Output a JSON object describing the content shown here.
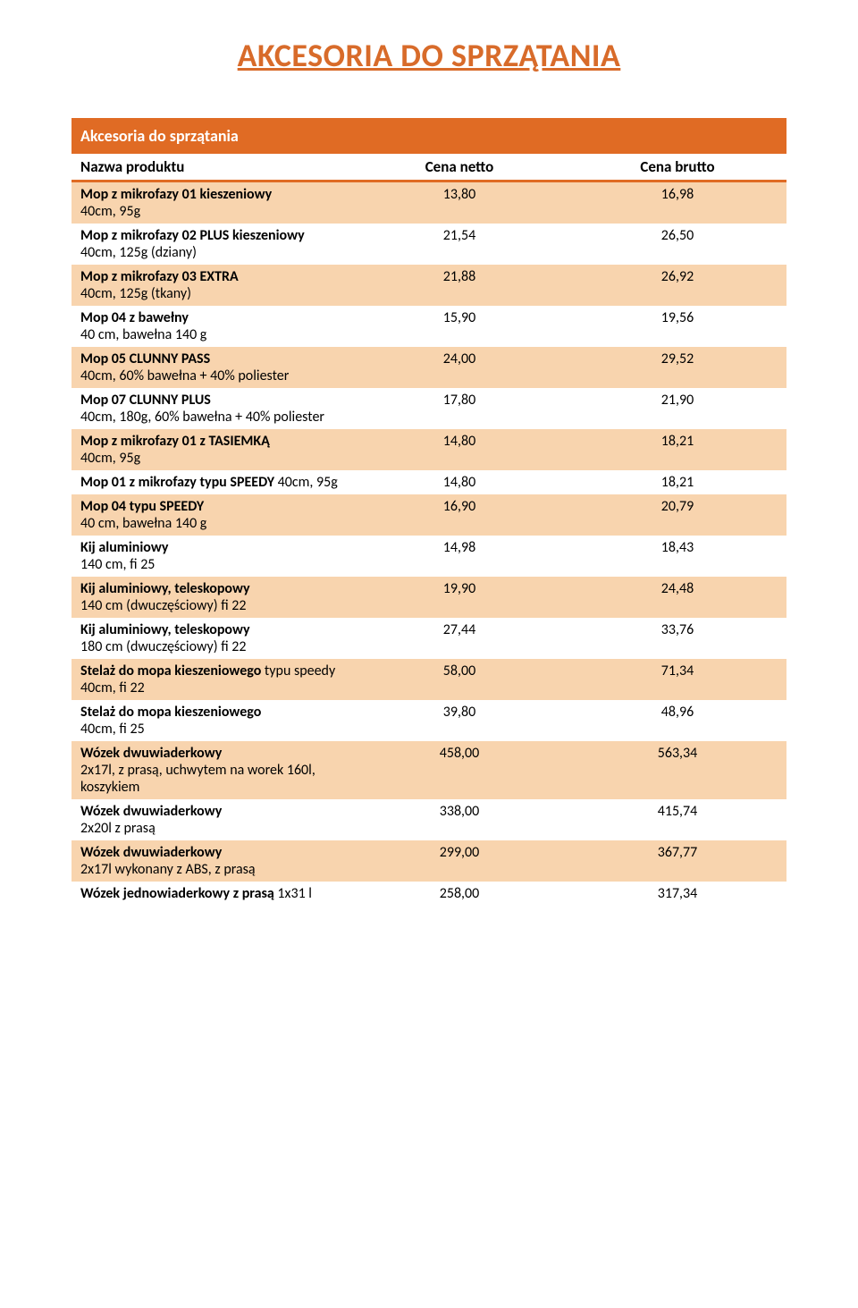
{
  "title": {
    "text": "AKCESORIA DO SPRZĄTANIA",
    "color": "#d86b2a"
  },
  "table": {
    "section_header": {
      "label": "Akcesoria do sprzątania",
      "bg": "#e06b24",
      "fg": "#ffffff",
      "border": "#e06b24"
    },
    "divider_color": "#e06b24",
    "columns": {
      "name": "Nazwa produktu",
      "net": "Cena netto",
      "gross": "Cena brutto"
    },
    "row_colors": {
      "light": "#ffffff",
      "peach": "#f8d4ae"
    },
    "rows": [
      {
        "main": "Mop z mikrofazy 01 kieszeniowy",
        "sub": "40cm, 95g",
        "net": "13,80",
        "gross": "16,98"
      },
      {
        "main": "Mop z mikrofazy 02 PLUS kieszeniowy",
        "sub": "40cm, 125g (dziany)",
        "net": "21,54",
        "gross": "26,50"
      },
      {
        "main": "Mop z mikrofazy 03 EXTRA",
        "sub": "40cm, 125g (tkany)",
        "net": "21,88",
        "gross": "26,92"
      },
      {
        "main": "Mop 04 z bawełny",
        "sub": "40 cm, bawełna 140 g",
        "net": "15,90",
        "gross": "19,56"
      },
      {
        "main": "Mop 05 CLUNNY PASS",
        "sub": "40cm, 60% bawełna + 40% poliester",
        "net": "24,00",
        "gross": "29,52"
      },
      {
        "main": "Mop 07 CLUNNY PLUS",
        "sub": "40cm, 180g, 60% bawełna + 40% poliester",
        "net": "17,80",
        "gross": "21,90"
      },
      {
        "main": "Mop z mikrofazy 01 z TASIEMKĄ",
        "sub": "40cm, 95g",
        "net": "14,80",
        "gross": "18,21"
      },
      {
        "main": "Mop 01 z mikrofazy typu SPEEDY",
        "sub2": "40cm, 95g",
        "net": "14,80",
        "gross": "18,21"
      },
      {
        "main": "Mop 04 typu SPEEDY",
        "sub": "40 cm, bawełna 140 g",
        "net": "16,90",
        "gross": "20,79"
      },
      {
        "main": "Kij aluminiowy",
        "sub": "140 cm, fi 25",
        "net": "14,98",
        "gross": "18,43"
      },
      {
        "main": "Kij aluminiowy, teleskopowy",
        "sub": "140 cm (dwuczęściowy) fi 22",
        "net": "19,90",
        "gross": "24,48"
      },
      {
        "main": "Kij aluminiowy, teleskopowy",
        "sub": "180 cm (dwuczęściowy) fi 22",
        "net": "27,44",
        "gross": "33,76"
      },
      {
        "main": "Stelaż do mopa kieszeniowego",
        "sub2": "typu speedy",
        "sub": "40cm, fi 22",
        "net": "58,00",
        "gross": "71,34"
      },
      {
        "main": "Stelaż do mopa kieszeniowego",
        "sub": "40cm, fi 25",
        "net": "39,80",
        "gross": "48,96"
      },
      {
        "main": "Wózek dwuwiaderkowy",
        "sub": "2x17l, z prasą, uchwytem na worek 160l, koszykiem",
        "net": "458,00",
        "gross": "563,34"
      },
      {
        "main": "Wózek dwuwiaderkowy",
        "sub": "2x20l z prasą",
        "net": "338,00",
        "gross": "415,74"
      },
      {
        "main": "Wózek dwuwiaderkowy",
        "sub": "2x17l wykonany z ABS, z prasą",
        "net": "299,00",
        "gross": "367,77"
      },
      {
        "main": "Wózek jednowiaderkowy z prasą",
        "sub2": "1x31 l",
        "net": "258,00",
        "gross": "317,34"
      }
    ]
  }
}
